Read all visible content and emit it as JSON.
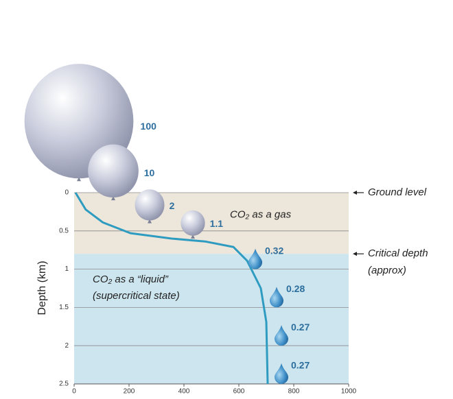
{
  "chart_data": {
    "type": "line",
    "ylabel": "Depth (km)",
    "xlim": [
      0,
      1000
    ],
    "xticks": [
      0,
      200,
      400,
      600,
      800,
      1000
    ],
    "ylim": [
      0,
      2.5
    ],
    "yticks": [
      0,
      0.5,
      1,
      1.5,
      2,
      2.5
    ],
    "y_inverted": true,
    "grid": true,
    "regions": [
      {
        "label": "CO₂ as a gas",
        "from": 0,
        "to": 0.8,
        "color": "#ede6da"
      },
      {
        "label": "CO₂ as a “liquid”",
        "sublabel": "(supercritical state)",
        "from": 0.8,
        "to": 2.5,
        "color": "#cde5ee"
      }
    ],
    "series": [
      {
        "color": "#2e9bc0",
        "x": [
          5,
          42,
          105,
          205,
          355,
          480,
          580,
          630,
          680,
          700,
          705
        ],
        "values": [
          0,
          0.22,
          0.39,
          0.53,
          0.6,
          0.64,
          0.71,
          0.89,
          1.25,
          1.69,
          2.5
        ]
      }
    ],
    "balloons": {
      "volumes": [
        100,
        10,
        2,
        1.1,
        0.32,
        0.28,
        0.27,
        0.27
      ],
      "depths": [
        -0.15,
        0.1,
        0.4,
        0.6,
        1.0,
        1.5,
        2.0,
        2.5
      ]
    },
    "annotations": [
      {
        "text": "Ground level",
        "depth": 0
      },
      {
        "text": "Critical depth",
        "subtext": "(approx)",
        "depth": 0.8
      }
    ]
  }
}
